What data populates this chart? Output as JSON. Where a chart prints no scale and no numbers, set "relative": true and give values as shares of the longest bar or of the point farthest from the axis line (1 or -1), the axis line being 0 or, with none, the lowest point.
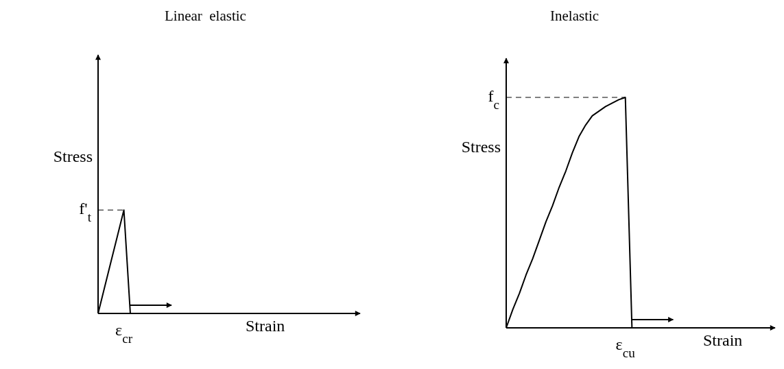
{
  "chart_data": [
    {
      "type": "line",
      "title": "Linear  elastic",
      "xlabel": "Strain",
      "ylabel": "Stress",
      "relative": true,
      "annotations": [
        "ε$_{cr}$"
      ],
      "line_style": "solid",
      "marker": "none",
      "categories": [
        null,
        null,
        null,
        null,
        null,
        null,
        null,
        null,
        null,
        null,
        null,
        null,
        null,
        null,
        null,
        null,
        null,
        null,
        null,
        null,
        null,
        null,
        null,
        null,
        null,
        null,
        null,
        null,
        null,
        null,
        null,
        null,
        null,
        null,
        null,
        null,
        null,
        null,
        null,
        null
      ],
      "series": [
        {
          "color": "#000000",
          "values": [
            0,
            0.25,
            0.5,
            0.75,
            1,
            0,
            null,
            null,
            null,
            null,
            null,
            null,
            null,
            null,
            null,
            null,
            null,
            null,
            null,
            null,
            null,
            null,
            null,
            null,
            null,
            null,
            null,
            null,
            null,
            null,
            null,
            null,
            null,
            null,
            null,
            null,
            null,
            null,
            null,
            null
          ]
        }
      ],
      "ref_lines": [
        {
          "axis": "y",
          "value": 1,
          "label": "f'$_{t}$",
          "line_style": "dashed",
          "color": "#000000"
        }
      ]
    },
    {
      "type": "line",
      "title": "Inelastic",
      "xlabel": "Strain",
      "ylabel": "Stress",
      "relative": true,
      "annotations": [
        "ε$_{cu}$"
      ],
      "line_style": "solid",
      "marker": "none",
      "categories": [
        null,
        null,
        null,
        null,
        null,
        null,
        null,
        null,
        null,
        null,
        null,
        null,
        null,
        null,
        null,
        null,
        null,
        null,
        null,
        null,
        null,
        null,
        null,
        null,
        null,
        null,
        null,
        null,
        null,
        null,
        null,
        null,
        null,
        null,
        null,
        null,
        null,
        null,
        null,
        null
      ],
      "series": [
        {
          "color": "#000000",
          "values": [
            0,
            0.08,
            0.15,
            0.23,
            0.3,
            0.38,
            0.46,
            0.53,
            0.61,
            0.68,
            0.76,
            0.83,
            0.88,
            0.92,
            0.94,
            0.96,
            0.975,
            0.99,
            1,
            0,
            null,
            null,
            null,
            null,
            null,
            null,
            null,
            null,
            null,
            null,
            null,
            null,
            null,
            null,
            null,
            null,
            null,
            null,
            null,
            null
          ]
        }
      ],
      "ref_lines": [
        {
          "axis": "y",
          "value": 1,
          "label": "f$_{c}$",
          "line_style": "dashed",
          "color": "#000000"
        }
      ]
    }
  ]
}
